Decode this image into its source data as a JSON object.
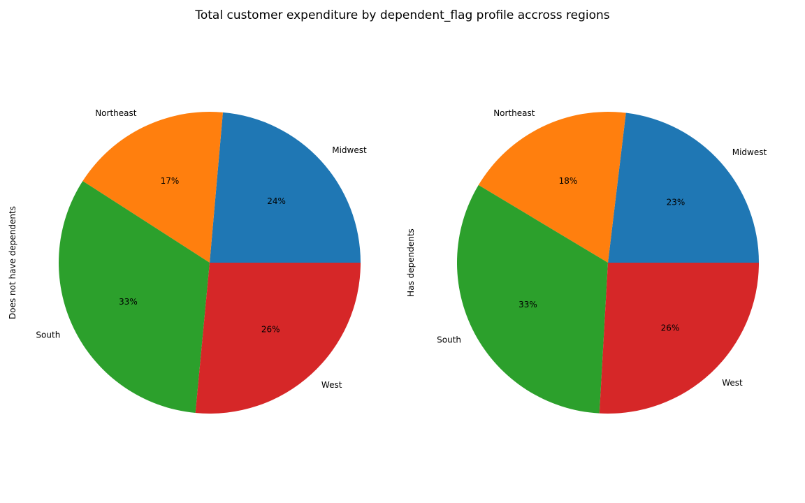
{
  "title": "Total customer expenditure by dependent_flag profile accross regions",
  "colors": [
    "#1f77b4",
    "#ff7f0e",
    "#2ca02c",
    "#d62728"
  ],
  "chart_data": [
    {
      "type": "pie",
      "ylabel": "Does not have dependents",
      "categories": [
        "Midwest",
        "Northeast",
        "South",
        "West"
      ],
      "values": [
        23.6,
        17.3,
        32.6,
        26.5
      ],
      "pct_labels": [
        "24%",
        "17%",
        "33%",
        "26%"
      ]
    },
    {
      "type": "pie",
      "ylabel": "Has dependents",
      "categories": [
        "Midwest",
        "Northeast",
        "South",
        "West"
      ],
      "values": [
        23.1,
        18.3,
        32.7,
        25.9
      ],
      "pct_labels": [
        "23%",
        "18%",
        "33%",
        "26%"
      ]
    }
  ]
}
